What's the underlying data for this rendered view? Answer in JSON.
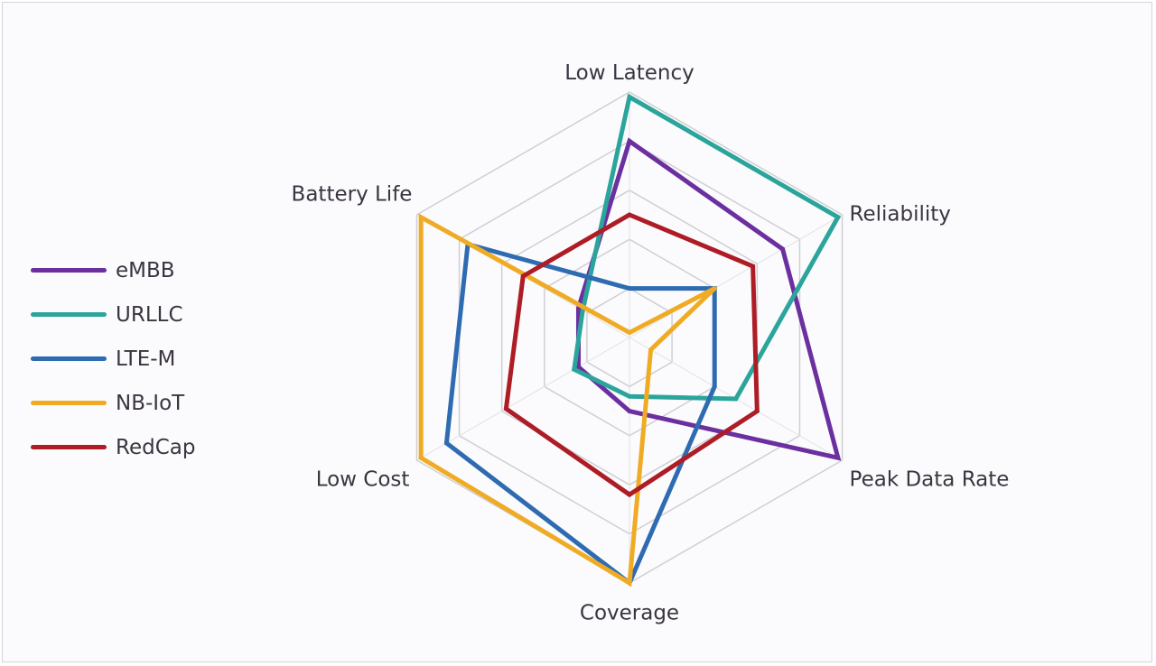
{
  "chart_data": {
    "type": "radar",
    "axes": [
      "Low Latency",
      "Reliability",
      "Peak Data Rate",
      "Coverage",
      "Low Cost",
      "Battery Life"
    ],
    "rlim": [
      0,
      5
    ],
    "grid_levels": 5,
    "grid": true,
    "legend_position": "left",
    "series": [
      {
        "name": "eMBB",
        "color": "#6b2fa0",
        "values": [
          4,
          3.6,
          4.9,
          1.5,
          1.2,
          1.2
        ]
      },
      {
        "name": "URLLC",
        "color": "#2ba59b",
        "values": [
          4.9,
          4.9,
          2.5,
          1.2,
          1.3,
          1.1
        ]
      },
      {
        "name": "LTE-M",
        "color": "#2e6bb0",
        "values": [
          1,
          2,
          2,
          5,
          4.3,
          3.8
        ]
      },
      {
        "name": "NB-IoT",
        "color": "#f0ab24",
        "values": [
          0.1,
          2,
          0.5,
          5,
          4.9,
          4.9
        ]
      },
      {
        "name": "RedCap",
        "color": "#ae1c25",
        "values": [
          2.5,
          2.9,
          3,
          3.2,
          2.9,
          2.5
        ]
      }
    ]
  }
}
